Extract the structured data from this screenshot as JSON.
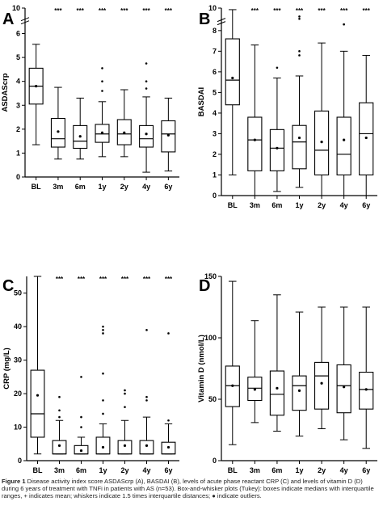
{
  "caption": {
    "label": "Figure 1",
    "text": "Disease activity index score ASDAScrp (A), BASDAI (B), levels of acute phase reactant CRP (C) and levels of vitamin D (D) during 6 years of treatment with TNFi in patients with AS (n=53). Box-and-whisker plots (Tukey): boxes indicate medians with interquartile ranges, + indicates mean; whiskers indicate 1.5 times interquartile distances; ● indicate outliers."
  },
  "chart_data": [
    {
      "panel": "A",
      "type": "box",
      "ylabel": "ASDAScrp",
      "ylim": [
        0,
        10
      ],
      "yticks": [
        0,
        1,
        2,
        3,
        4,
        5,
        6,
        10
      ],
      "ybreak": [
        6.5,
        9.5
      ],
      "categories": [
        "BL",
        "3m",
        "6m",
        "1y",
        "2y",
        "4y",
        "6y"
      ],
      "significance": [
        "",
        "***",
        "***",
        "***",
        "***",
        "***",
        "***"
      ],
      "boxes": [
        {
          "whisker_low": 1.35,
          "q1": 3.05,
          "median": 3.8,
          "q3": 4.55,
          "whisker_high": 5.55,
          "mean": 3.8,
          "outliers": []
        },
        {
          "whisker_low": 0.75,
          "q1": 1.25,
          "median": 1.6,
          "q3": 2.45,
          "whisker_high": 3.75,
          "mean": 1.9,
          "outliers": []
        },
        {
          "whisker_low": 0.75,
          "q1": 1.2,
          "median": 1.5,
          "q3": 2.15,
          "whisker_high": 3.3,
          "mean": 1.7,
          "outliers": []
        },
        {
          "whisker_low": 0.85,
          "q1": 1.45,
          "median": 1.8,
          "q3": 2.2,
          "whisker_high": 3.15,
          "mean": 1.85,
          "outliers": [
            3.6,
            4.0,
            4.55
          ]
        },
        {
          "whisker_low": 0.85,
          "q1": 1.35,
          "median": 1.8,
          "q3": 2.4,
          "whisker_high": 3.65,
          "mean": 1.85,
          "outliers": []
        },
        {
          "whisker_low": 0.2,
          "q1": 1.25,
          "median": 1.6,
          "q3": 2.15,
          "whisker_high": 3.35,
          "mean": 1.8,
          "outliers": [
            3.7,
            4.0,
            4.75
          ]
        },
        {
          "whisker_low": 0.25,
          "q1": 1.05,
          "median": 1.8,
          "q3": 2.35,
          "whisker_high": 3.3,
          "mean": 1.75,
          "outliers": []
        }
      ]
    },
    {
      "panel": "B",
      "type": "box",
      "ylabel": "BASDAI",
      "ylim": [
        0,
        10
      ],
      "yticks": [
        0,
        1,
        2,
        3,
        4,
        5,
        6,
        7,
        8,
        10
      ],
      "ybreak": [
        8.4,
        9.5
      ],
      "categories": [
        "BL",
        "3m",
        "6m",
        "1y",
        "2y",
        "4y",
        "6y"
      ],
      "significance": [
        "",
        "***",
        "***",
        "***",
        "***",
        "***",
        "***"
      ],
      "boxes": [
        {
          "whisker_low": 1.0,
          "q1": 4.4,
          "median": 5.6,
          "q3": 7.6,
          "whisker_high": 9.9,
          "mean": 5.7,
          "outliers": []
        },
        {
          "whisker_low": 0.0,
          "q1": 1.2,
          "median": 2.7,
          "q3": 3.8,
          "whisker_high": 7.3,
          "mean": 2.7,
          "outliers": []
        },
        {
          "whisker_low": 0.2,
          "q1": 1.2,
          "median": 2.3,
          "q3": 3.2,
          "whisker_high": 5.7,
          "mean": 2.3,
          "outliers": [
            6.2
          ]
        },
        {
          "whisker_low": 0.4,
          "q1": 1.3,
          "median": 2.6,
          "q3": 3.4,
          "whisker_high": 5.8,
          "mean": 2.8,
          "outliers": [
            6.8,
            7.0,
            9.0,
            9.4
          ]
        },
        {
          "whisker_low": 0.0,
          "q1": 1.0,
          "median": 2.2,
          "q3": 4.1,
          "whisker_high": 7.4,
          "mean": 2.6,
          "outliers": []
        },
        {
          "whisker_low": 0.0,
          "q1": 1.0,
          "median": 2.0,
          "q3": 3.8,
          "whisker_high": 7.0,
          "mean": 2.7,
          "outliers": [
            8.3,
            8.3
          ]
        },
        {
          "whisker_low": 0.0,
          "q1": 1.0,
          "median": 3.0,
          "q3": 4.5,
          "whisker_high": 6.8,
          "mean": 2.8,
          "outliers": []
        }
      ]
    },
    {
      "panel": "C",
      "type": "box",
      "ylabel": "CRP (mg/L)",
      "ylim": [
        0,
        55
      ],
      "yticks": [
        0,
        10,
        20,
        30,
        40,
        50
      ],
      "categories": [
        "BL",
        "3m",
        "6m",
        "1y",
        "2y",
        "4y",
        "6y"
      ],
      "significance": [
        "",
        "***",
        "***",
        "***",
        "***",
        "***",
        "***"
      ],
      "boxes": [
        {
          "whisker_low": 2,
          "q1": 7,
          "median": 14,
          "q3": 27,
          "whisker_high": 55,
          "mean": 19.5,
          "outliers": []
        },
        {
          "whisker_low": 2,
          "q1": 2,
          "median": 2,
          "q3": 6,
          "whisker_high": 12,
          "mean": 4.5,
          "outliers": [
            13,
            15,
            19
          ]
        },
        {
          "whisker_low": 2,
          "q1": 2,
          "median": 2,
          "q3": 4.5,
          "whisker_high": 7,
          "mean": 3,
          "outliers": [
            10,
            13,
            25
          ]
        },
        {
          "whisker_low": 2,
          "q1": 2,
          "median": 2,
          "q3": 7,
          "whisker_high": 11,
          "mean": 4,
          "outliers": [
            14,
            18,
            26,
            38,
            39,
            40
          ]
        },
        {
          "whisker_low": 2,
          "q1": 2,
          "median": 2,
          "q3": 6,
          "whisker_high": 12,
          "mean": 4.5,
          "outliers": [
            16,
            20,
            21
          ]
        },
        {
          "whisker_low": 2,
          "q1": 2,
          "median": 2,
          "q3": 6,
          "whisker_high": 13,
          "mean": 4.5,
          "outliers": [
            18,
            19,
            39
          ]
        },
        {
          "whisker_low": 2,
          "q1": 2,
          "median": 2,
          "q3": 5.5,
          "whisker_high": 11,
          "mean": 4,
          "outliers": [
            12,
            38
          ]
        }
      ]
    },
    {
      "panel": "D",
      "type": "box",
      "ylabel": "Vitamin D (nmol/L)",
      "ylim": [
        0,
        150
      ],
      "yticks": [
        0,
        50,
        100,
        150
      ],
      "categories": [
        "BL",
        "3m",
        "6m",
        "1y",
        "2y",
        "4y",
        "6y"
      ],
      "significance": [
        "",
        "",
        "",
        "",
        "",
        "",
        ""
      ],
      "boxes": [
        {
          "whisker_low": 13,
          "q1": 44,
          "median": 61,
          "q3": 77,
          "whisker_high": 146,
          "mean": 61,
          "outliers": []
        },
        {
          "whisker_low": 31,
          "q1": 49,
          "median": 59,
          "q3": 68,
          "whisker_high": 114,
          "mean": 58,
          "outliers": []
        },
        {
          "whisker_low": 24,
          "q1": 37,
          "median": 54,
          "q3": 73,
          "whisker_high": 135,
          "mean": 59,
          "outliers": []
        },
        {
          "whisker_low": 20,
          "q1": 41,
          "median": 61,
          "q3": 69,
          "whisker_high": 121,
          "mean": 57,
          "outliers": []
        },
        {
          "whisker_low": 26,
          "q1": 42,
          "median": 69,
          "q3": 80,
          "whisker_high": 125,
          "mean": 63,
          "outliers": []
        },
        {
          "whisker_low": 17,
          "q1": 39,
          "median": 61,
          "q3": 78,
          "whisker_high": 125,
          "mean": 60,
          "outliers": []
        },
        {
          "whisker_low": 10,
          "q1": 42,
          "median": 58,
          "q3": 72,
          "whisker_high": 125,
          "mean": 58,
          "outliers": []
        }
      ]
    }
  ]
}
